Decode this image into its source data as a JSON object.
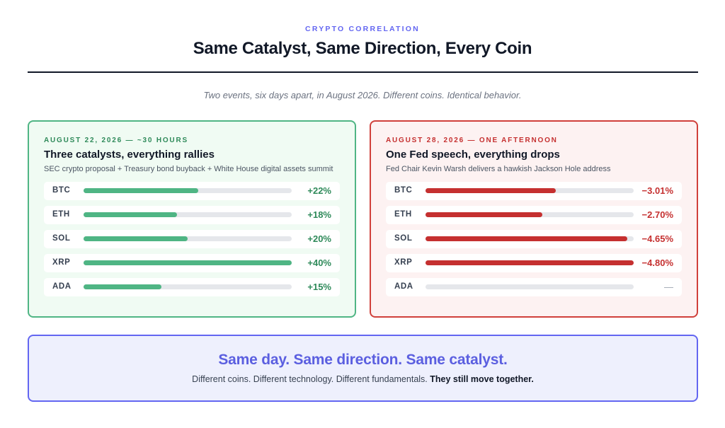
{
  "header": {
    "eyebrow": "CRYPTO CORRELATION",
    "title": "Same Catalyst, Same Direction, Every Coin",
    "subtitle": "Two events, six days apart, in August 2026. Different coins. Identical behavior."
  },
  "colors": {
    "accent": "#6366f1",
    "positive": "#4fb584",
    "negative": "#c53030",
    "track": "#e5e7eb"
  },
  "chart_data": [
    {
      "type": "bar",
      "title": "Three catalysts, everything rallies",
      "date_label": "AUGUST 22, 2026 — ~30 HOURS",
      "subtitle": "SEC crypto proposal + Treasury bond buyback + White House digital assets summit",
      "categories": [
        "BTC",
        "ETH",
        "SOL",
        "XRP",
        "ADA"
      ],
      "values": [
        22,
        18,
        20,
        40,
        15
      ],
      "labels": [
        "+22%",
        "+18%",
        "+20%",
        "+40%",
        "+15%"
      ],
      "unit": "%",
      "xlim": [
        0,
        40
      ]
    },
    {
      "type": "bar",
      "title": "One Fed speech, everything drops",
      "date_label": "AUGUST 28, 2026 — ONE AFTERNOON",
      "subtitle": "Fed Chair Kevin Warsh delivers a hawkish Jackson Hole address",
      "categories": [
        "BTC",
        "ETH",
        "SOL",
        "XRP",
        "ADA"
      ],
      "values": [
        -3.01,
        -2.7,
        -4.65,
        -4.8,
        null
      ],
      "labels": [
        "−3.01%",
        "−2.70%",
        "−4.65%",
        "−4.80%",
        "—"
      ],
      "unit": "%",
      "xlim": [
        0,
        -4.8
      ]
    }
  ],
  "footer": {
    "headline": "Same day. Same direction. Same catalyst.",
    "body": "Different coins. Different technology. Different fundamentals. ",
    "body_bold": "They still move together."
  }
}
